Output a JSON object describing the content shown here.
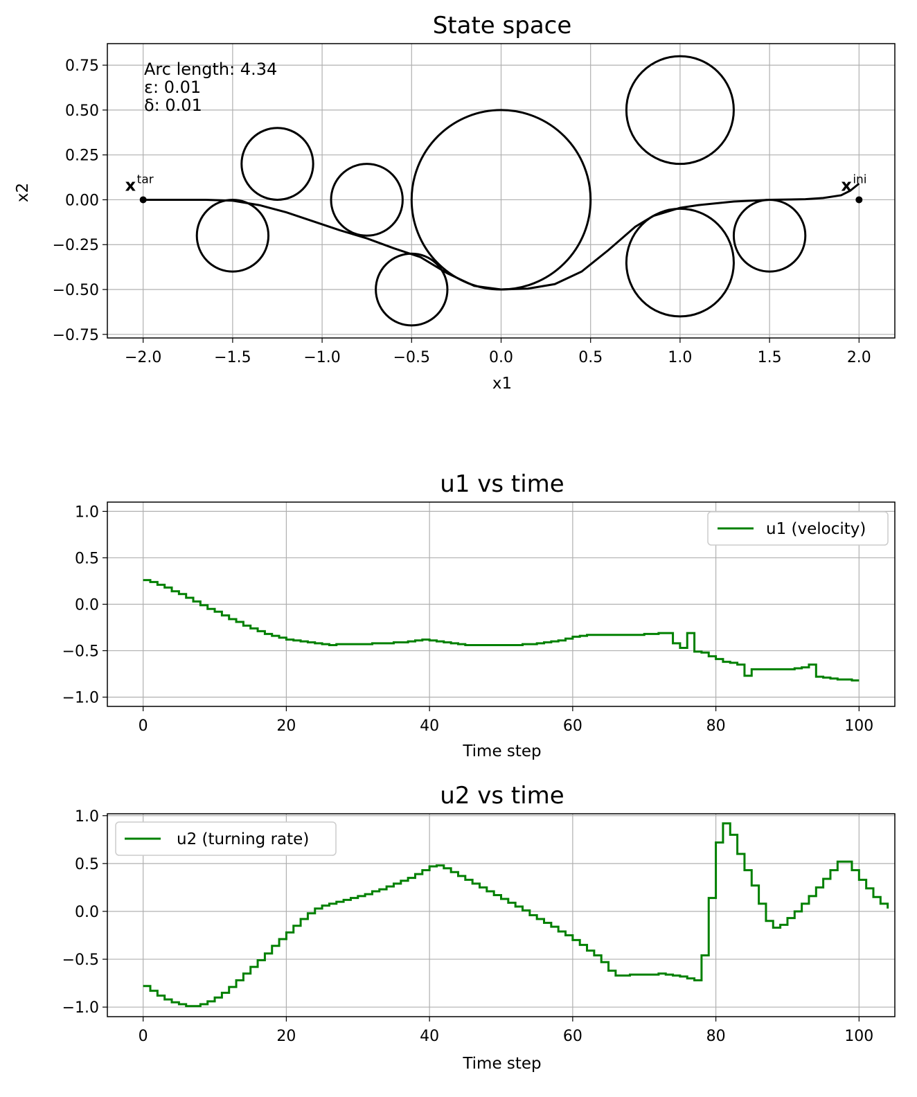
{
  "chart_data": [
    {
      "type": "line",
      "title": "State space",
      "xlabel": "x1",
      "ylabel": "x2",
      "xlim": [
        -2.2,
        2.2
      ],
      "ylim": [
        -0.77,
        0.87
      ],
      "xticks": [
        -2.0,
        -1.5,
        -1.0,
        -0.5,
        0.0,
        0.5,
        1.0,
        1.5,
        2.0
      ],
      "xtick_labels": [
        "−2.0",
        "−1.5",
        "−1.0",
        "−0.5",
        "0.0",
        "0.5",
        "1.0",
        "1.5",
        "2.0"
      ],
      "yticks": [
        0.75,
        0.5,
        0.25,
        0.0,
        -0.25,
        -0.5,
        -0.75
      ],
      "ytick_labels": [
        "0.75",
        "0.50",
        "0.25",
        "0.00",
        "−0.25",
        "−0.50",
        "−0.75"
      ],
      "grid": true,
      "annotations": [
        "Arc length: 4.34",
        "ε: 0.01",
        "δ: 0.01"
      ],
      "markers": [
        {
          "label": "x",
          "sup": "tar",
          "x": -2.0,
          "y": 0.0
        },
        {
          "label": "x",
          "sup": "ini",
          "x": 2.0,
          "y": 0.0
        }
      ],
      "obstacles": [
        {
          "cx": 0.0,
          "cy": 0.0,
          "r": 0.5
        },
        {
          "cx": 1.0,
          "cy": 0.5,
          "r": 0.3
        },
        {
          "cx": 1.0,
          "cy": -0.35,
          "r": 0.3
        },
        {
          "cx": 1.5,
          "cy": -0.2,
          "r": 0.2
        },
        {
          "cx": -1.25,
          "cy": 0.2,
          "r": 0.2
        },
        {
          "cx": -0.75,
          "cy": 0.0,
          "r": 0.2
        },
        {
          "cx": -1.5,
          "cy": -0.2,
          "r": 0.2
        },
        {
          "cx": -0.5,
          "cy": -0.5,
          "r": 0.2
        }
      ],
      "path": [
        [
          2.0,
          0.09
        ],
        [
          1.95,
          0.05
        ],
        [
          1.9,
          0.025
        ],
        [
          1.8,
          0.01
        ],
        [
          1.7,
          0.003
        ],
        [
          1.5,
          0.0
        ],
        [
          1.3,
          -0.01
        ],
        [
          1.1,
          -0.03
        ],
        [
          1.0,
          -0.045
        ],
        [
          0.85,
          -0.09
        ],
        [
          0.75,
          -0.15
        ],
        [
          0.6,
          -0.28
        ],
        [
          0.45,
          -0.4
        ],
        [
          0.3,
          -0.47
        ],
        [
          0.15,
          -0.495
        ],
        [
          0.0,
          -0.5
        ],
        [
          -0.15,
          -0.48
        ],
        [
          -0.3,
          -0.41
        ],
        [
          -0.45,
          -0.32
        ],
        [
          -0.6,
          -0.27
        ],
        [
          -0.75,
          -0.215
        ],
        [
          -0.9,
          -0.17
        ],
        [
          -1.05,
          -0.12
        ],
        [
          -1.2,
          -0.07
        ],
        [
          -1.35,
          -0.03
        ],
        [
          -1.5,
          -0.005
        ],
        [
          -1.65,
          0.0
        ],
        [
          -1.8,
          0.0
        ],
        [
          -2.0,
          0.0
        ]
      ]
    },
    {
      "type": "line",
      "title": "u1 vs time",
      "xlabel": "Time step",
      "ylabel": "",
      "xlim": [
        -5,
        105
      ],
      "ylim": [
        -1.1,
        1.1
      ],
      "xticks": [
        0,
        20,
        40,
        60,
        80,
        100
      ],
      "xtick_labels": [
        "0",
        "20",
        "40",
        "60",
        "80",
        "100"
      ],
      "yticks": [
        1.0,
        0.5,
        0.0,
        -0.5,
        -1.0
      ],
      "ytick_labels": [
        "1.0",
        "0.5",
        "0.0",
        "−0.5",
        "−1.0"
      ],
      "grid": true,
      "legend": "upper right",
      "series": [
        {
          "name": "u1 (velocity)",
          "color": "#008000",
          "step": true,
          "values": [
            0.26,
            0.24,
            0.21,
            0.18,
            0.14,
            0.11,
            0.07,
            0.03,
            -0.01,
            -0.05,
            -0.08,
            -0.12,
            -0.16,
            -0.19,
            -0.23,
            -0.26,
            -0.29,
            -0.32,
            -0.34,
            -0.36,
            -0.38,
            -0.39,
            -0.4,
            -0.41,
            -0.42,
            -0.43,
            -0.44,
            -0.43,
            -0.43,
            -0.43,
            -0.43,
            -0.43,
            -0.42,
            -0.42,
            -0.42,
            -0.41,
            -0.41,
            -0.4,
            -0.39,
            -0.38,
            -0.39,
            -0.4,
            -0.41,
            -0.42,
            -0.43,
            -0.44,
            -0.44,
            -0.44,
            -0.44,
            -0.44,
            -0.44,
            -0.44,
            -0.44,
            -0.43,
            -0.43,
            -0.42,
            -0.41,
            -0.4,
            -0.39,
            -0.37,
            -0.35,
            -0.34,
            -0.33,
            -0.33,
            -0.33,
            -0.33,
            -0.33,
            -0.33,
            -0.33,
            -0.33,
            -0.32,
            -0.32,
            -0.31,
            -0.31,
            -0.42,
            -0.47,
            -0.31,
            -0.51,
            -0.52,
            -0.56,
            -0.59,
            -0.62,
            -0.63,
            -0.65,
            -0.77,
            -0.7,
            -0.7,
            -0.7,
            -0.7,
            -0.7,
            -0.7,
            -0.69,
            -0.68,
            -0.65,
            -0.78,
            -0.79,
            -0.8,
            -0.81,
            -0.81,
            -0.82,
            -0.82
          ]
        }
      ]
    },
    {
      "type": "line",
      "title": "u2 vs time",
      "xlabel": "Time step",
      "ylabel": "",
      "xlim": [
        -5,
        105
      ],
      "ylim": [
        -1.1,
        1.02
      ],
      "xticks": [
        0,
        20,
        40,
        60,
        80,
        100
      ],
      "xtick_labels": [
        "0",
        "20",
        "40",
        "60",
        "80",
        "100"
      ],
      "yticks": [
        1.0,
        0.5,
        0.0,
        -0.5,
        -1.0
      ],
      "ytick_labels": [
        "1.0",
        "0.5",
        "0.0",
        "−0.5",
        "−1.0"
      ],
      "grid": true,
      "legend": "upper left",
      "series": [
        {
          "name": "u2 (turning rate)",
          "color": "#008000",
          "step": true,
          "values": [
            -0.78,
            -0.83,
            -0.88,
            -0.92,
            -0.95,
            -0.97,
            -0.99,
            -0.99,
            -0.97,
            -0.94,
            -0.9,
            -0.85,
            -0.79,
            -0.72,
            -0.65,
            -0.58,
            -0.51,
            -0.44,
            -0.36,
            -0.29,
            -0.22,
            -0.15,
            -0.08,
            -0.02,
            0.03,
            0.06,
            0.08,
            0.1,
            0.12,
            0.14,
            0.16,
            0.18,
            0.21,
            0.23,
            0.26,
            0.29,
            0.32,
            0.35,
            0.39,
            0.43,
            0.47,
            0.48,
            0.45,
            0.41,
            0.37,
            0.33,
            0.29,
            0.25,
            0.21,
            0.17,
            0.13,
            0.09,
            0.05,
            0.01,
            -0.04,
            -0.08,
            -0.12,
            -0.16,
            -0.21,
            -0.25,
            -0.3,
            -0.35,
            -0.41,
            -0.46,
            -0.53,
            -0.62,
            -0.67,
            -0.67,
            -0.66,
            -0.66,
            -0.66,
            -0.66,
            -0.65,
            -0.66,
            -0.67,
            -0.68,
            -0.7,
            -0.72,
            -0.46,
            0.14,
            0.72,
            0.92,
            0.8,
            0.6,
            0.43,
            0.27,
            0.08,
            -0.1,
            -0.17,
            -0.14,
            -0.07,
            0.0,
            0.08,
            0.16,
            0.25,
            0.34,
            0.43,
            0.52,
            0.52,
            0.43,
            0.33,
            0.24,
            0.15,
            0.08,
            0.03
          ]
        }
      ]
    }
  ]
}
